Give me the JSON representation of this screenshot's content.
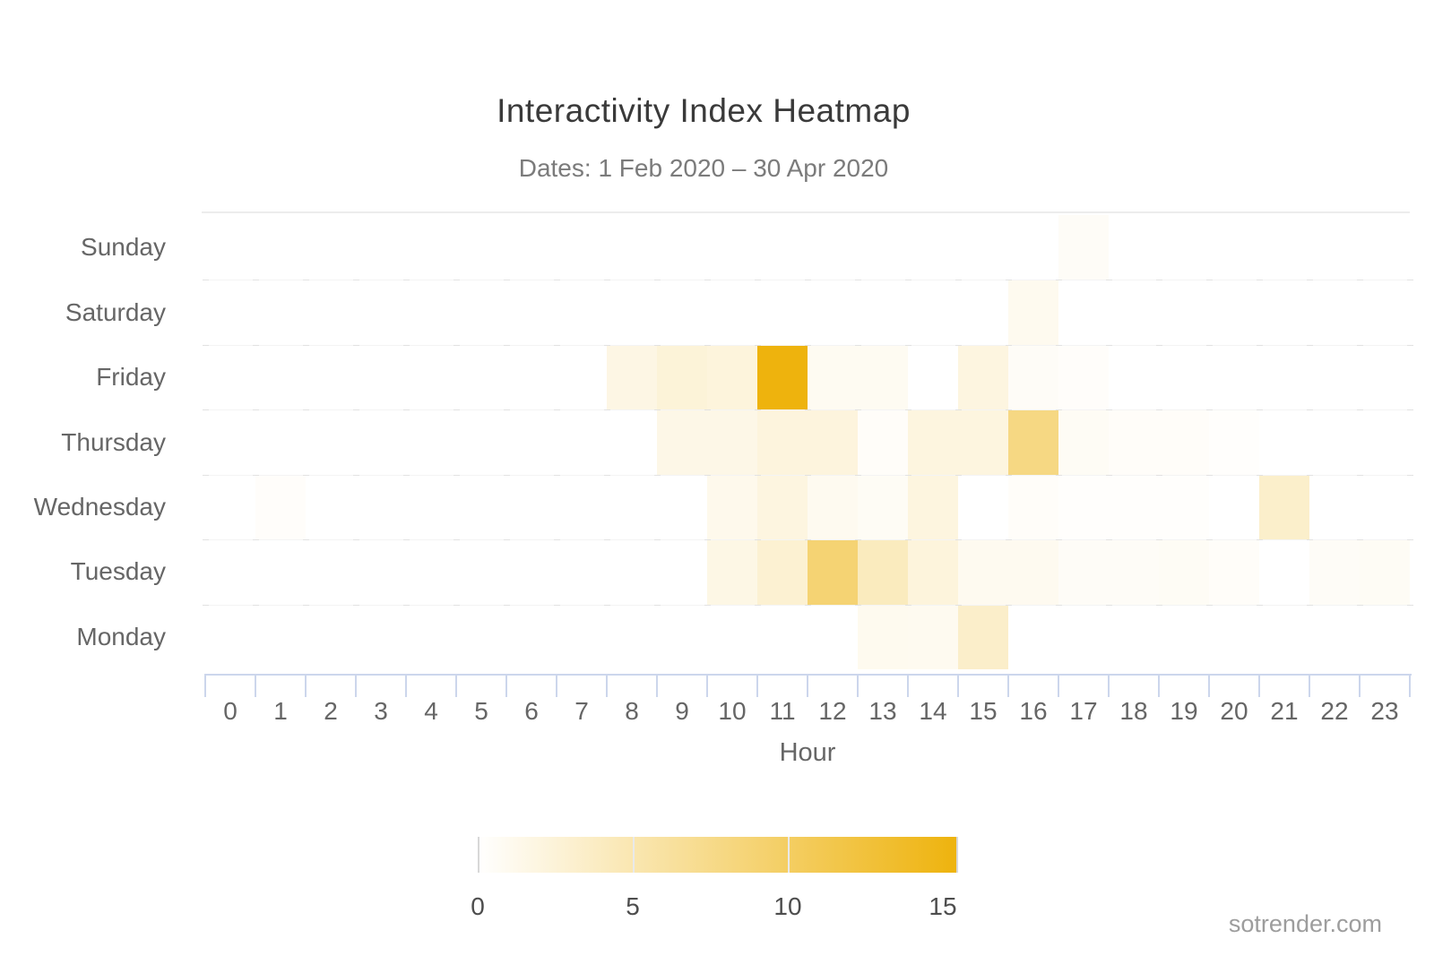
{
  "title": "Interactivity Index Heatmap",
  "subtitle": "Dates: 1 Feb 2020 – 30 Apr 2020",
  "watermark": "sotrender.com",
  "chart_data": {
    "type": "heatmap",
    "title": "Interactivity Index Heatmap",
    "subtitle": "Dates: 1 Feb 2020 – 30 Apr 2020",
    "xlabel": "Hour",
    "ylabel": "",
    "x_categories": [
      "0",
      "1",
      "2",
      "3",
      "4",
      "5",
      "6",
      "7",
      "8",
      "9",
      "10",
      "11",
      "12",
      "13",
      "14",
      "15",
      "16",
      "17",
      "18",
      "19",
      "20",
      "21",
      "22",
      "23"
    ],
    "y_categories": [
      "Sunday",
      "Saturday",
      "Friday",
      "Thursday",
      "Wednesday",
      "Tuesday",
      "Monday"
    ],
    "series": [
      {
        "name": "Sunday",
        "values": [
          0,
          0,
          0,
          0,
          0,
          0,
          0,
          0,
          0,
          0,
          0,
          0,
          0,
          0,
          0,
          0,
          0,
          0.5,
          0,
          0,
          0,
          0,
          0,
          0
        ]
      },
      {
        "name": "Saturday",
        "values": [
          0,
          0,
          0,
          0,
          0,
          0,
          0,
          0,
          0,
          0,
          0,
          0,
          0,
          0,
          0,
          0,
          1,
          0,
          0,
          0,
          0,
          0,
          0,
          0
        ]
      },
      {
        "name": "Friday",
        "values": [
          0,
          0,
          0,
          0,
          0,
          0,
          0,
          0,
          1.7,
          2.4,
          2.2,
          15,
          0.8,
          0.8,
          0,
          1.9,
          0.5,
          0.3,
          0,
          0,
          0,
          0,
          0,
          0
        ]
      },
      {
        "name": "Thursday",
        "values": [
          0,
          0,
          0,
          0,
          0,
          0,
          0,
          0,
          0,
          1.5,
          1.5,
          2.1,
          2.1,
          0.4,
          2,
          2,
          7.7,
          0.6,
          0.4,
          0.4,
          0.2,
          0,
          0,
          0
        ]
      },
      {
        "name": "Wednesday",
        "values": [
          0,
          0.3,
          0,
          0,
          0,
          0,
          0,
          0,
          0,
          0,
          1.2,
          1.9,
          0.9,
          0.6,
          2,
          0,
          0.4,
          0.2,
          0.2,
          0.2,
          0,
          3.2,
          0,
          0
        ]
      },
      {
        "name": "Tuesday",
        "values": [
          0,
          0,
          0,
          0,
          0,
          0,
          0,
          0,
          0,
          0,
          1.6,
          2.8,
          8.7,
          4,
          2.2,
          0.9,
          0.9,
          0.5,
          0.5,
          0.6,
          0.4,
          0,
          0.5,
          0.6
        ]
      },
      {
        "name": "Monday",
        "values": [
          0,
          0,
          0,
          0,
          0,
          0,
          0,
          0,
          0,
          0,
          0,
          0,
          0,
          1,
          0.9,
          3.3,
          0,
          0,
          0,
          0,
          0,
          0,
          0,
          0
        ]
      }
    ],
    "colorscale": {
      "min": 0,
      "max": 15,
      "min_color": "#ffffff",
      "max_color": "#eeb30d",
      "legend_ticks": [
        "0",
        "5",
        "10",
        "15"
      ],
      "legend_tick_values": [
        0,
        5,
        10,
        15
      ],
      "legend_position": "bottom"
    },
    "grid": true,
    "axis_tick_color": "#ccd6ec"
  }
}
